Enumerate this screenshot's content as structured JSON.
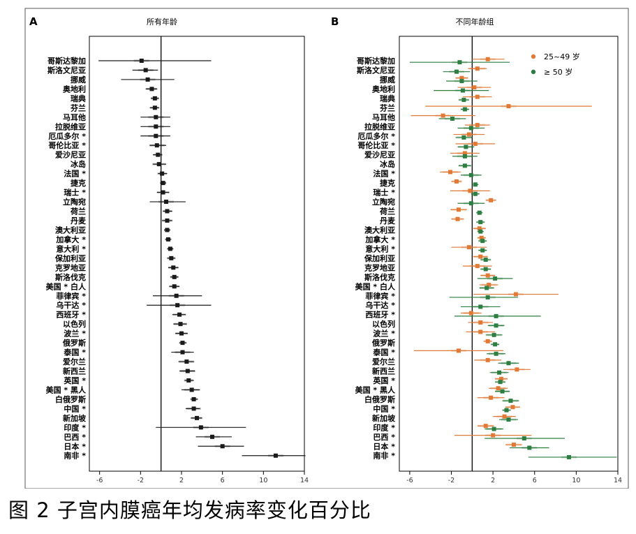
{
  "caption": "图 2 子宫内膜癌年均发病率变化百分比",
  "colors": {
    "all": "#1a1a1a",
    "young": "#e07a36",
    "old": "#2e7d42",
    "zero_line": "#000000"
  },
  "chart_data": [
    {
      "type": "forest",
      "panel": "A",
      "title": "所有年龄",
      "xlim": [
        -7,
        14
      ],
      "xticks": [
        -6,
        -2,
        2,
        6,
        10,
        14
      ],
      "categories": [
        "哥斯达黎加",
        "斯洛文尼亚",
        "挪威",
        "奥地利",
        "瑞典",
        "芬兰",
        "马耳他",
        "拉脱维亚",
        "厄瓜多尔 *",
        "哥伦比亚 *",
        "爱沙尼亚",
        "冰岛",
        "法国 *",
        "捷克",
        "瑞士 *",
        "立陶宛",
        "荷兰",
        "丹麦",
        "澳大利亚",
        "加拿大 *",
        "意大利 *",
        "保加利亚",
        "克罗地亚",
        "斯洛伐克",
        "美国 * 白人",
        "菲律宾 *",
        "乌干达 *",
        "西班牙 *",
        "以色列",
        "波兰 *",
        "俄罗斯",
        "泰国 *",
        "爱尔兰",
        "新西兰",
        "英国 *",
        "美国 * 黑人",
        "白俄罗斯",
        "中国 *",
        "新加坡",
        "印度 *",
        "巴西 *",
        "日本 *",
        "南非 *"
      ],
      "series": [
        {
          "values": [
            -1.9,
            -1.5,
            -1.3,
            -0.9,
            -0.6,
            -0.6,
            -0.5,
            -0.5,
            -0.5,
            -0.4,
            -0.3,
            -0.2,
            0.1,
            0.2,
            0.2,
            0.5,
            0.6,
            0.6,
            0.6,
            0.7,
            0.9,
            1.0,
            1.2,
            1.3,
            1.3,
            1.5,
            1.6,
            1.8,
            1.9,
            2.0,
            2.1,
            2.1,
            2.5,
            2.6,
            2.7,
            3.0,
            3.2,
            3.2,
            3.5,
            3.9,
            5.0,
            6.0,
            11.2
          ],
          "lower": [
            -6.1,
            -2.8,
            -3.9,
            -1.5,
            -1.0,
            -1.1,
            -2.0,
            -2.0,
            -2.0,
            -1.1,
            -0.8,
            -0.8,
            -0.3,
            -0.1,
            -0.4,
            -1.1,
            0.2,
            0.1,
            0.3,
            0.4,
            0.6,
            0.6,
            0.7,
            0.9,
            0.8,
            -0.8,
            -1.4,
            1.1,
            1.2,
            1.4,
            1.8,
            1.0,
            1.7,
            1.8,
            2.3,
            2.0,
            2.9,
            2.4,
            2.9,
            -0.5,
            3.4,
            3.6,
            7.9
          ],
          "upper": [
            4.9,
            -0.3,
            1.3,
            -0.4,
            -0.2,
            -0.2,
            0.9,
            0.9,
            0.9,
            0.5,
            0.1,
            0.5,
            0.6,
            0.5,
            0.8,
            2.4,
            1.1,
            1.1,
            0.9,
            1.0,
            1.2,
            1.4,
            1.7,
            1.7,
            1.8,
            4.0,
            4.9,
            2.4,
            2.5,
            2.6,
            2.5,
            3.2,
            3.2,
            3.3,
            3.2,
            3.8,
            3.6,
            3.8,
            4.0,
            8.3,
            6.9,
            8.1,
            14.1
          ]
        }
      ]
    },
    {
      "type": "forest",
      "panel": "B",
      "title": "不同年龄组",
      "xlim": [
        -7,
        14
      ],
      "xticks": [
        -6,
        -2,
        2,
        6,
        10,
        14
      ],
      "legend_position": "top-right",
      "categories": [
        "哥斯达黎加",
        "斯洛文尼亚",
        "挪威",
        "奥地利",
        "瑞典",
        "芬兰",
        "马耳他",
        "拉脱维亚",
        "厄瓜多尔 *",
        "哥伦比亚 *",
        "爱沙尼亚",
        "冰岛",
        "法国 *",
        "捷克",
        "瑞士 *",
        "立陶宛",
        "荷兰",
        "丹麦",
        "澳大利亚",
        "加拿大 *",
        "意大利 *",
        "保加利亚",
        "克罗地亚",
        "斯洛伐克",
        "美国 * 白人",
        "菲律宾 *",
        "乌干达 *",
        "西班牙 *",
        "以色列",
        "波兰 *",
        "俄罗斯",
        "泰国 *",
        "爱尔兰",
        "新西兰",
        "英国 *",
        "美国 * 黑人",
        "白俄罗斯",
        "中国 *",
        "新加坡",
        "印度 *",
        "巴西 *",
        "日本 *",
        "南非 *"
      ],
      "series": [
        {
          "name": "25~49 岁",
          "values": [
            1.5,
            0.5,
            -1.0,
            0.2,
            0.5,
            3.5,
            -2.8,
            0.5,
            -0.3,
            0.3,
            -0.7,
            null,
            -2.1,
            -1.5,
            -0.2,
            1.8,
            -1.3,
            -1.4,
            0.7,
            0.9,
            -0.3,
            0.8,
            0.5,
            1.5,
            1.6,
            4.2,
            null,
            -0.1,
            0.8,
            0.8,
            1.5,
            -1.3,
            1.5,
            4.3,
            2.8,
            2.5,
            1.8,
            3.9,
            3.1,
            1.3,
            2.0,
            4.0,
            null
          ],
          "lower": [
            0.0,
            -0.4,
            -1.6,
            -1.4,
            -0.9,
            -4.5,
            -5.9,
            -0.7,
            -1.8,
            -1.6,
            -2.1,
            null,
            -3.1,
            -2.0,
            -2.1,
            1.3,
            -2.1,
            -2.0,
            0.1,
            0.5,
            -2.0,
            0.1,
            -0.9,
            0.8,
            0.7,
            0.1,
            null,
            -1.1,
            -0.4,
            -0.6,
            1.1,
            -5.6,
            0.2,
            3.0,
            2.2,
            1.6,
            0.5,
            3.2,
            2.0,
            0.5,
            -1.7,
            3.2,
            null
          ],
          "upper": [
            3.1,
            1.4,
            -0.4,
            1.8,
            1.9,
            11.5,
            0.3,
            1.7,
            1.2,
            2.2,
            0.7,
            null,
            -1.1,
            -1.0,
            1.7,
            2.3,
            -0.5,
            -0.8,
            1.3,
            1.3,
            1.4,
            1.5,
            1.9,
            2.2,
            2.5,
            8.3,
            null,
            0.9,
            2.0,
            2.2,
            1.9,
            3.0,
            2.8,
            5.6,
            3.4,
            3.4,
            3.1,
            4.6,
            4.2,
            2.1,
            5.7,
            4.8,
            null
          ]
        },
        {
          "name": "≥ 50 岁",
          "values": [
            -1.2,
            -1.5,
            -1.0,
            -0.9,
            -0.8,
            -0.7,
            -1.9,
            -0.1,
            -0.8,
            -0.6,
            -0.7,
            -0.7,
            -0.1,
            0.3,
            0.3,
            -0.1,
            0.7,
            0.8,
            0.8,
            1.0,
            1.0,
            1.3,
            1.3,
            2.2,
            1.4,
            1.5,
            0.8,
            2.3,
            2.3,
            2.1,
            2.2,
            2.3,
            3.5,
            2.6,
            2.7,
            2.9,
            3.7,
            3.3,
            3.5,
            2.1,
            5.0,
            5.5,
            9.3
          ],
          "lower": [
            -6.0,
            -2.8,
            -2.5,
            -3.7,
            -1.3,
            -1.1,
            -3.2,
            -1.4,
            -1.6,
            -1.4,
            -1.9,
            -1.3,
            -1.1,
            0.1,
            -0.1,
            -1.4,
            0.4,
            0.4,
            0.5,
            0.6,
            0.6,
            0.8,
            0.8,
            0.5,
            0.7,
            -2.2,
            -1.1,
            -1.7,
            1.5,
            1.3,
            1.8,
            1.4,
            2.5,
            1.7,
            2.2,
            2.2,
            2.9,
            2.9,
            2.6,
            1.2,
            1.2,
            3.6,
            5.4
          ],
          "upper": [
            3.6,
            -0.2,
            0.5,
            1.6,
            -0.3,
            -0.3,
            -0.6,
            1.2,
            0.0,
            0.2,
            0.5,
            -0.1,
            0.9,
            0.6,
            0.7,
            1.2,
            1.0,
            1.2,
            1.1,
            1.4,
            1.4,
            1.8,
            1.8,
            3.9,
            2.1,
            4.4,
            2.7,
            6.6,
            3.1,
            2.9,
            2.6,
            3.2,
            4.5,
            3.5,
            3.2,
            3.6,
            4.5,
            3.7,
            4.4,
            3.0,
            8.9,
            7.4,
            13.9
          ]
        }
      ]
    }
  ]
}
